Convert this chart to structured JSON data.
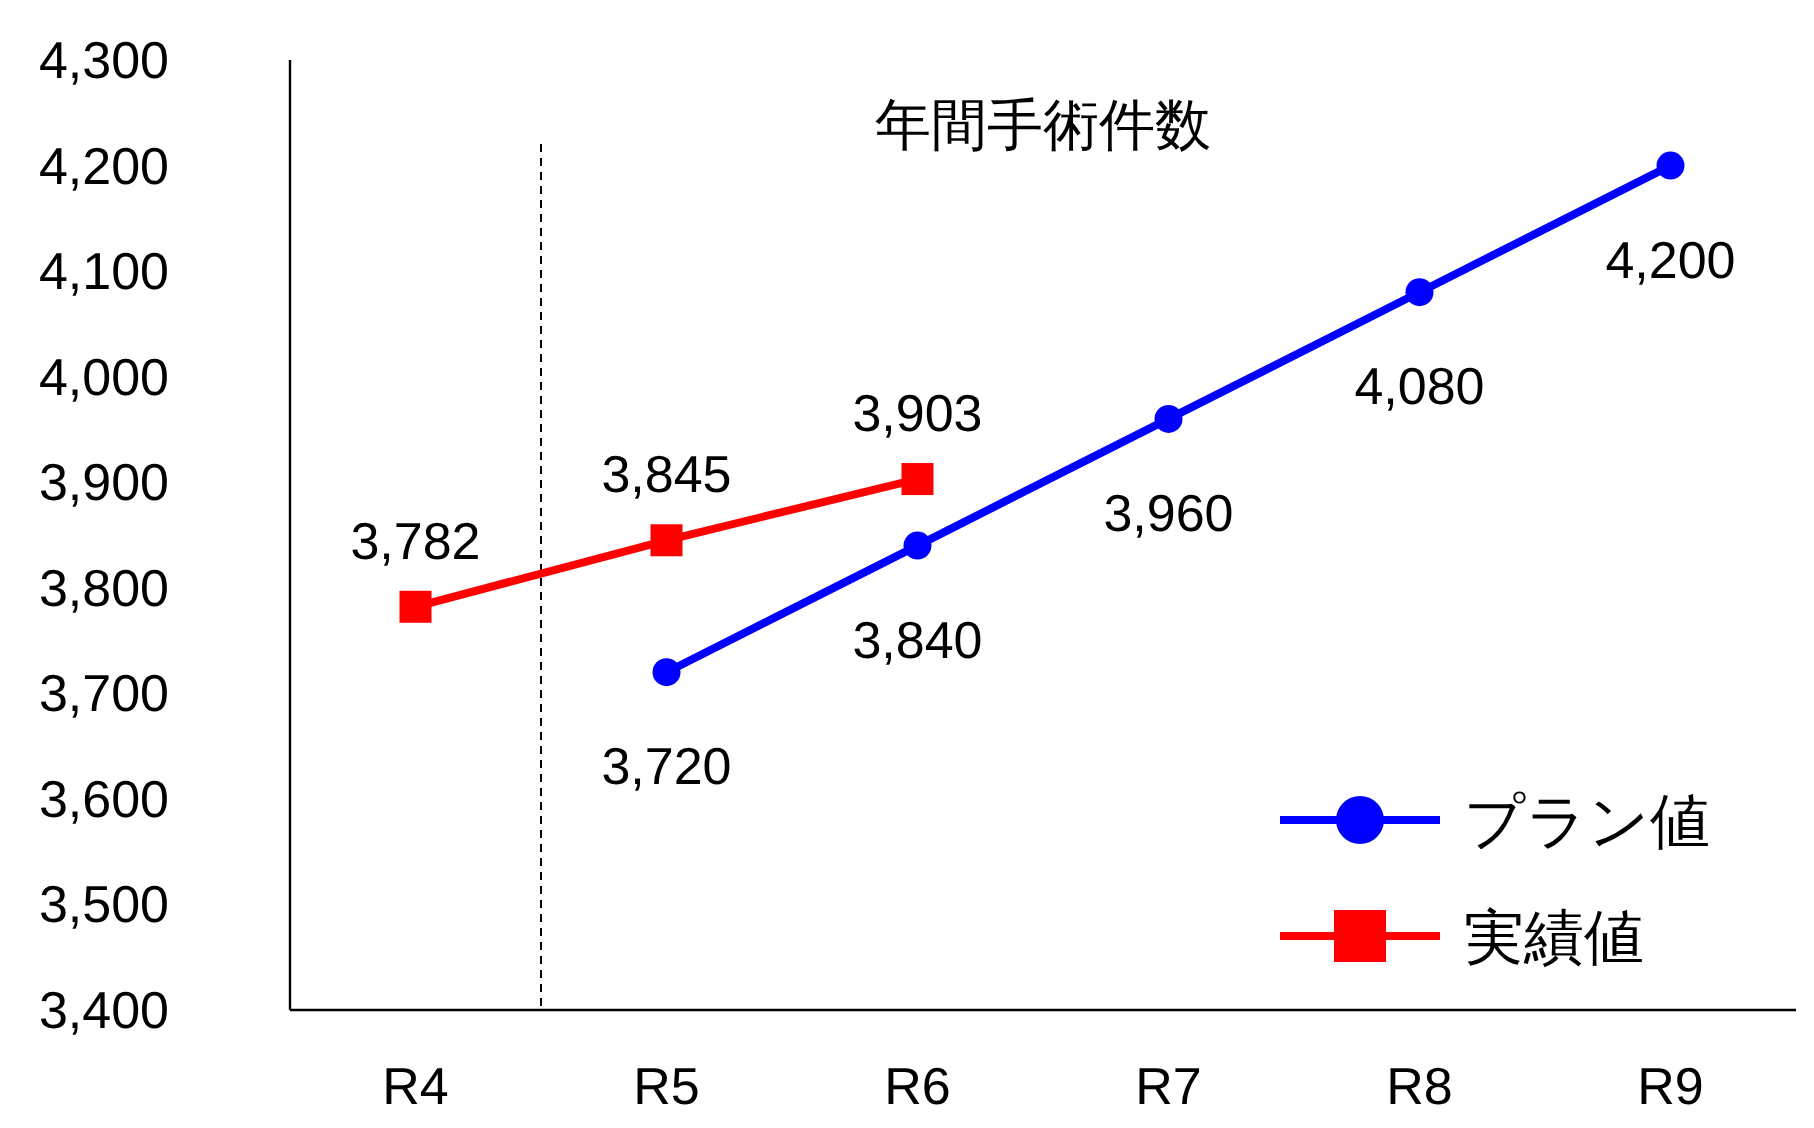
{
  "chart_data": {
    "type": "line",
    "title": "年間手術件数",
    "categories": [
      "R4",
      "R5",
      "R6",
      "R7",
      "R8",
      "R9"
    ],
    "series": [
      {
        "name": "プラン値",
        "color": "#0000ff",
        "marker": "circle",
        "values": [
          null,
          3720,
          3840,
          3960,
          4080,
          4200
        ],
        "value_labels": [
          null,
          "3,720",
          "3,840",
          "3,960",
          "4,080",
          "4,200"
        ]
      },
      {
        "name": "実績値",
        "color": "#ff0000",
        "marker": "square",
        "values": [
          3782,
          3845,
          3903,
          null,
          null,
          null
        ],
        "value_labels": [
          "3,782",
          "3,845",
          "3,903",
          null,
          null,
          null
        ]
      }
    ],
    "ylim": [
      3400,
      4300
    ],
    "yticks": [
      {
        "value": 3400,
        "label": "3,400"
      },
      {
        "value": 3500,
        "label": "3,500"
      },
      {
        "value": 3600,
        "label": "3,600"
      },
      {
        "value": 3700,
        "label": "3,700"
      },
      {
        "value": 3800,
        "label": "3,800"
      },
      {
        "value": 3900,
        "label": "3,900"
      },
      {
        "value": 4000,
        "label": "4,000"
      },
      {
        "value": 4100,
        "label": "4,100"
      },
      {
        "value": 4200,
        "label": "4,200"
      },
      {
        "value": 4300,
        "label": "4,300"
      }
    ],
    "legend": "bottom right",
    "grid": false
  }
}
